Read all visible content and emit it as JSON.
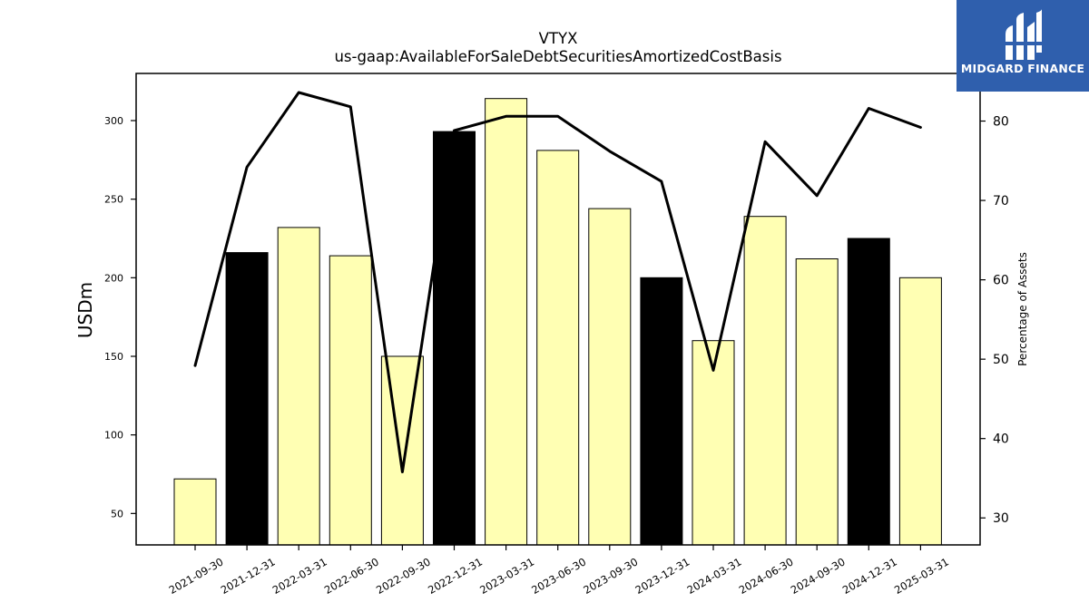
{
  "chart_data": {
    "type": "bar",
    "title": "VTYX",
    "subtitle": "us-gaap:AvailableForSaleDebtSecuritiesAmortizedCostBasis",
    "ylabel": "USDm",
    "y2label": "Percentage of Assets",
    "categories": [
      "2021-09-30",
      "2021-12-31",
      "2022-03-31",
      "2022-06-30",
      "2022-09-30",
      "2022-12-31",
      "2023-03-31",
      "2023-06-30",
      "2023-09-30",
      "2023-12-31",
      "2024-03-31",
      "2024-06-30",
      "2024-09-30",
      "2024-12-31",
      "2025-03-31"
    ],
    "values": [
      72,
      216,
      232,
      214,
      150,
      293,
      314,
      281,
      244,
      200,
      160,
      239,
      212,
      225,
      200
    ],
    "bar_colors": [
      "#ffffb3",
      "#000000",
      "#ffffb3",
      "#ffffb3",
      "#ffffb3",
      "#000000",
      "#ffffb3",
      "#ffffb3",
      "#ffffb3",
      "#000000",
      "#ffffb3",
      "#ffffb3",
      "#ffffb3",
      "#000000",
      "#ffffb3"
    ],
    "line_series": {
      "name": "",
      "values": [
        49.2,
        74.2,
        83.6,
        81.8,
        35.8,
        78.8,
        80.6,
        80.6,
        76.2,
        72.4,
        48.6,
        77.4,
        70.6,
        81.6,
        79.2
      ]
    },
    "ylim": [
      30,
      330
    ],
    "y2lim": [
      26.6,
      86.0
    ],
    "yticks": [
      50,
      100,
      150,
      200,
      250,
      300
    ],
    "y2ticks": [
      30,
      40,
      50,
      60,
      70,
      80
    ],
    "grid": false
  },
  "logo": {
    "text": "MIDGARD FINANCE",
    "background": "#2f5fad"
  }
}
